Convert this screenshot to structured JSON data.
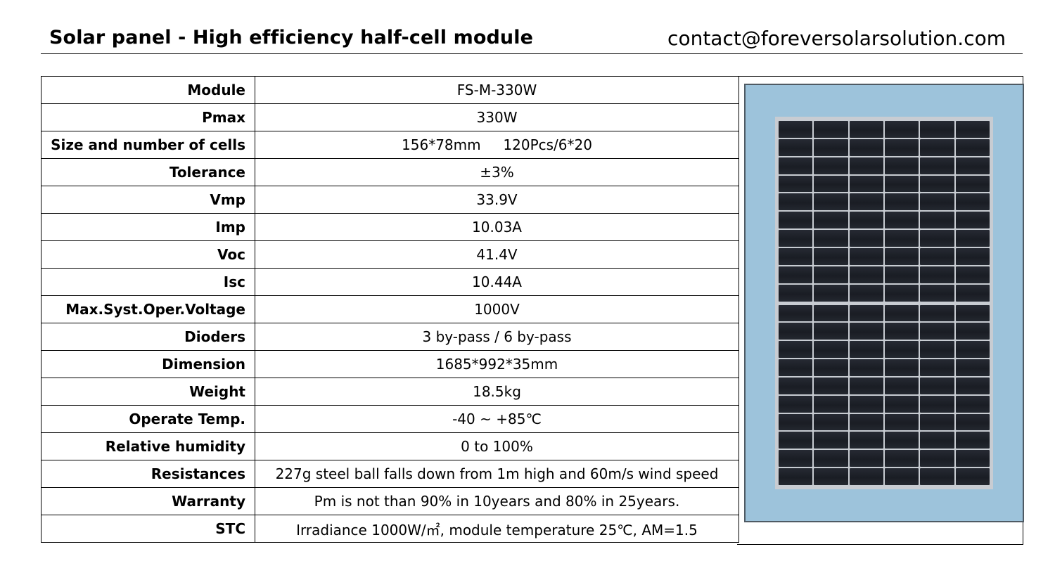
{
  "header": {
    "title": "Solar panel - High efficiency half-cell module",
    "contact": "contact@foreversolarsolution.com"
  },
  "specs": [
    {
      "label": "Module",
      "value": "FS-M-330W"
    },
    {
      "label": "Pmax",
      "value": "330W"
    },
    {
      "label": "Size and number of cells",
      "value": "156*78mm     120Pcs/6*20"
    },
    {
      "label": "Tolerance",
      "value": "±3%"
    },
    {
      "label": "Vmp",
      "value": "33.9V"
    },
    {
      "label": "Imp",
      "value": "10.03A"
    },
    {
      "label": "Voc",
      "value": "41.4V"
    },
    {
      "label": "Isc",
      "value": "10.44A"
    },
    {
      "label": "Max.Syst.Oper.Voltage",
      "value": "1000V"
    },
    {
      "label": "Dioders",
      "value": "3 by-pass / 6 by-pass"
    },
    {
      "label": "Dimension",
      "value": "1685*992*35mm"
    },
    {
      "label": "Weight",
      "value": "18.5kg"
    },
    {
      "label": "Operate Temp.",
      "value": "-40 ~ +85℃"
    },
    {
      "label": "Relative humidity",
      "value": "0 to 100%"
    },
    {
      "label": "Resistances",
      "value": "227g steel ball falls down from 1m high and 60m/s wind speed"
    },
    {
      "label": "Warranty",
      "value": "Pm is not than 90% in 10years and 80% in 25years."
    },
    {
      "label": "STC",
      "value": "Irradiance 1000W/㎡, module temperature 25℃, AM=1.5"
    }
  ],
  "image": {
    "icon": "solar-panel-image",
    "background_color": "#9dc3db",
    "cell_color": "#1f2229"
  }
}
